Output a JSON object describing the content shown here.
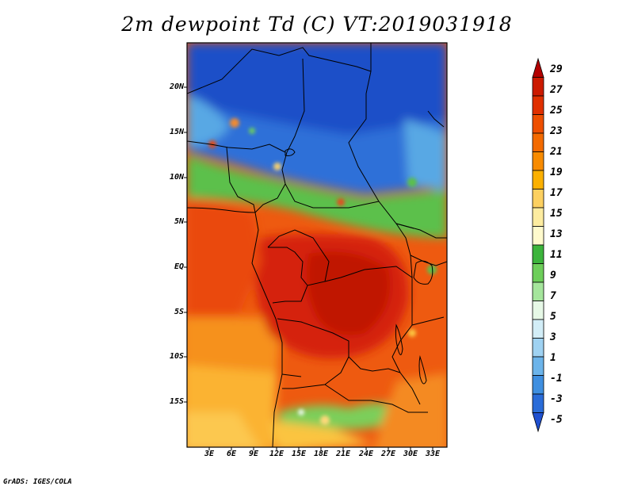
{
  "title": "2m dewpoint Td (C) VT:2019031918",
  "map": {
    "lat_labels": [
      "20N",
      "15N",
      "10N",
      "5N",
      "EQ",
      "5S",
      "10S",
      "15S"
    ],
    "lon_labels": [
      "3E",
      "6E",
      "9E",
      "12E",
      "15E",
      "18E",
      "21E",
      "24E",
      "27E",
      "30E",
      "33E"
    ]
  },
  "colorbar": {
    "labels": [
      "29",
      "27",
      "25",
      "23",
      "21",
      "19",
      "17",
      "15",
      "13",
      "11",
      "9",
      "7",
      "5",
      "3",
      "1",
      "-1",
      "-3",
      "-5"
    ],
    "colors": [
      "#b30000",
      "#cc1a00",
      "#e03000",
      "#ee4f00",
      "#f36a00",
      "#f88b00",
      "#fbb000",
      "#fcd060",
      "#fdeca0",
      "#fffacd",
      "#3cb43c",
      "#6dce5a",
      "#a5e59c",
      "#e6f8e6",
      "#d2edf7",
      "#9fd2f2",
      "#6cb4ea",
      "#3f8fe0",
      "#2a6cd8",
      "#1f50d0"
    ]
  },
  "credit": "GrADS: IGES/COLA"
}
